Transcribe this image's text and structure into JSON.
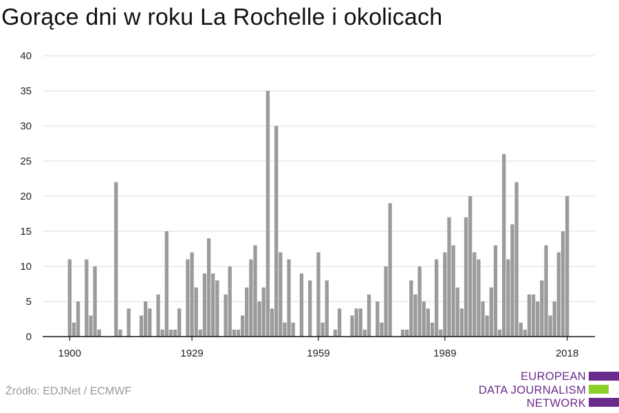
{
  "title": "Gorące dni w roku La Rochelle i okolicach",
  "source": "Źródło: EDJNet / ECMWF",
  "logo": {
    "line1": "EUROPEAN",
    "line2": "DATA JOURNALISM",
    "line3": "NETWORK",
    "color_purple": "#6b2b8d",
    "color_green": "#8ccf2a"
  },
  "chart_data": {
    "type": "bar",
    "start_year": 1900,
    "x_tick_labels": [
      "1900",
      "1929",
      "1959",
      "1989",
      "2018"
    ],
    "x_tick_years": [
      1900,
      1929,
      1959,
      1989,
      2018
    ],
    "y_tick_labels": [
      "0",
      "5",
      "10",
      "15",
      "20",
      "25",
      "30",
      "35",
      "40"
    ],
    "ylim": [
      0,
      40
    ],
    "grid": true,
    "bar_color": "#9b9b9b",
    "values": [
      11,
      2,
      5,
      0,
      11,
      3,
      10,
      1,
      0,
      0,
      0,
      22,
      1,
      0,
      4,
      0,
      0,
      3,
      5,
      4,
      0,
      6,
      1,
      15,
      1,
      1,
      4,
      0,
      11,
      12,
      7,
      1,
      9,
      14,
      9,
      8,
      0,
      6,
      10,
      1,
      1,
      3,
      7,
      11,
      13,
      5,
      7,
      35,
      4,
      30,
      12,
      2,
      11,
      2,
      0,
      9,
      0,
      8,
      0,
      12,
      2,
      8,
      0,
      1,
      4,
      0,
      0,
      3,
      4,
      4,
      1,
      6,
      0,
      5,
      2,
      10,
      19,
      0,
      0,
      1,
      1,
      8,
      6,
      10,
      5,
      4,
      2,
      11,
      1,
      12,
      17,
      13,
      7,
      4,
      17,
      20,
      12,
      11,
      5,
      3,
      7,
      13,
      1,
      26,
      11,
      16,
      22,
      2,
      1,
      6,
      6,
      5,
      8,
      13,
      3,
      5,
      12,
      15,
      20
    ]
  }
}
